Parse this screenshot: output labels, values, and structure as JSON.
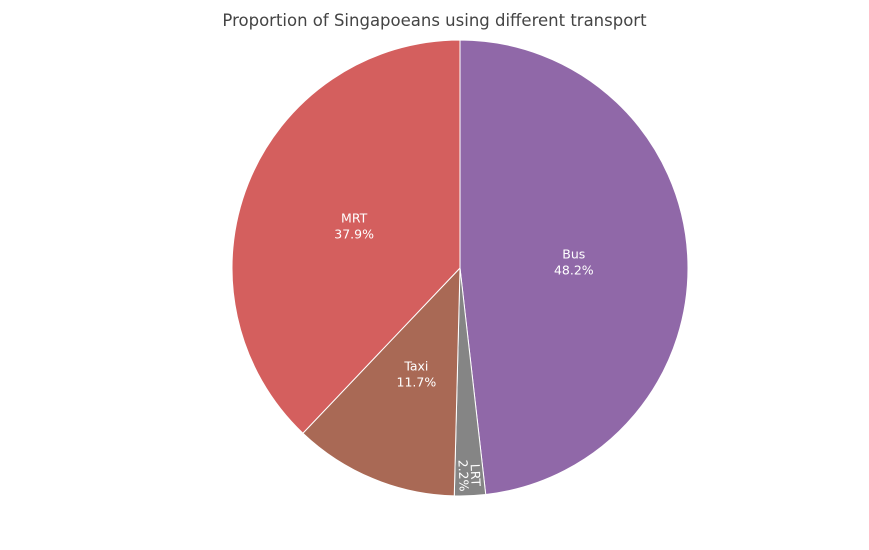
{
  "chart_data": {
    "type": "pie",
    "title": "Proportion of Singapoeans using different transport",
    "slices": [
      {
        "label": "Bus",
        "value": 48.2,
        "percent_text": "48.2%",
        "color": "#9068a8"
      },
      {
        "label": "LRT",
        "value": 2.2,
        "percent_text": "2.2%",
        "color": "#858585"
      },
      {
        "label": "Taxi",
        "value": 11.7,
        "percent_text": "11.7%",
        "color": "#a96955"
      },
      {
        "label": "MRT",
        "value": 37.9,
        "percent_text": "37.9%",
        "color": "#d45f5e"
      }
    ],
    "start_angle_deg": 0,
    "direction": "clockwise",
    "legend": "none"
  }
}
